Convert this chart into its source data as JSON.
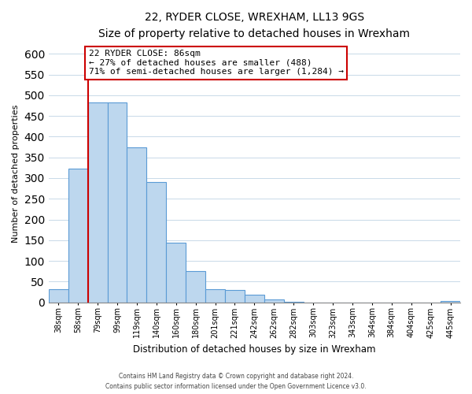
{
  "title": "22, RYDER CLOSE, WREXHAM, LL13 9GS",
  "subtitle": "Size of property relative to detached houses in Wrexham",
  "xlabel": "Distribution of detached houses by size in Wrexham",
  "ylabel": "Number of detached properties",
  "bar_labels": [
    "38sqm",
    "58sqm",
    "79sqm",
    "99sqm",
    "119sqm",
    "140sqm",
    "160sqm",
    "180sqm",
    "201sqm",
    "221sqm",
    "242sqm",
    "262sqm",
    "282sqm",
    "303sqm",
    "323sqm",
    "343sqm",
    "364sqm",
    "384sqm",
    "404sqm",
    "425sqm",
    "445sqm"
  ],
  "bar_values": [
    32,
    322,
    483,
    483,
    374,
    291,
    144,
    75,
    31,
    29,
    19,
    7,
    2,
    0,
    0,
    0,
    0,
    0,
    0,
    0,
    3
  ],
  "bar_color": "#bdd7ee",
  "bar_edge_color": "#5b9bd5",
  "annotation_text1": "22 RYDER CLOSE: 86sqm",
  "annotation_text2": "← 27% of detached houses are smaller (488)",
  "annotation_text3": "71% of semi-detached houses are larger (1,284) →",
  "annotation_box_color": "#ffffff",
  "annotation_box_edge": "#cc0000",
  "line_color": "#cc0000",
  "ylim": [
    0,
    620
  ],
  "yticks": [
    0,
    50,
    100,
    150,
    200,
    250,
    300,
    350,
    400,
    450,
    500,
    550,
    600
  ],
  "footer1": "Contains HM Land Registry data © Crown copyright and database right 2024.",
  "footer2": "Contains public sector information licensed under the Open Government Licence v3.0.",
  "bg_color": "#ffffff",
  "grid_color": "#c8d9e8"
}
